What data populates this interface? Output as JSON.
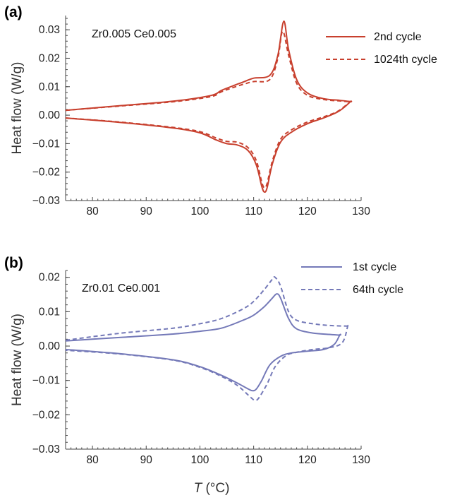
{
  "xlabel": "T (°C)",
  "chart_data": [
    {
      "type": "line",
      "panel_label": "(a)",
      "composition": "Zr0.005 Ce0.005",
      "ylabel": "Heat flow (W/g)",
      "xlim": [
        75,
        130
      ],
      "ylim": [
        -0.03,
        0.035
      ],
      "xticks": [
        80,
        90,
        100,
        110,
        120,
        130
      ],
      "yticks": [
        0.03,
        0.02,
        0.01,
        0.0,
        -0.01,
        -0.02,
        -0.03
      ],
      "ytick_labels": [
        "0.03",
        "0.02",
        "0.01",
        "0.00",
        "−0.01",
        "−0.02",
        "−0.03"
      ],
      "color": "#c8402e",
      "legend_position": "top-right",
      "series": [
        {
          "name": "2nd cycle",
          "style": "solid",
          "heating": {
            "x": [
              75,
              85,
              95,
              102,
              104,
              106,
              108,
              110,
              113,
              114.5,
              115.6,
              116.5,
              118,
              120,
              123,
              126,
              128
            ],
            "y": [
              0.0017,
              0.0033,
              0.0049,
              0.0069,
              0.0087,
              0.0102,
              0.0116,
              0.013,
              0.014,
              0.021,
              0.033,
              0.023,
              0.0125,
              0.0078,
              0.0058,
              0.0052,
              0.0048
            ]
          },
          "cooling": {
            "x": [
              128,
              127,
              125.5,
              123,
              120,
              117,
              115,
              113.5,
              112.5,
              112,
              111.5,
              110.5,
              109,
              107,
              105,
              103,
              100,
              95,
              85,
              75
            ],
            "y": [
              0.0048,
              0.003,
              0.001,
              -0.001,
              -0.003,
              -0.006,
              -0.0095,
              -0.017,
              -0.0255,
              -0.027,
              -0.025,
              -0.0175,
              -0.0125,
              -0.0105,
              -0.01,
              -0.0087,
              -0.0062,
              -0.0045,
              -0.0025,
              -0.001
            ]
          }
        },
        {
          "name": "1024th cycle",
          "style": "dashed",
          "heating": {
            "x": [
              75,
              85,
              95,
              102,
              104,
              106,
              108,
              110,
              113,
              114.5,
              115.4,
              116.5,
              118,
              120,
              123,
              126,
              128
            ],
            "y": [
              0.0017,
              0.0032,
              0.0047,
              0.0065,
              0.0082,
              0.0096,
              0.0108,
              0.0118,
              0.0125,
              0.02,
              0.0295,
              0.021,
              0.0112,
              0.007,
              0.0055,
              0.005,
              0.0047
            ]
          },
          "cooling": {
            "x": [
              128,
              127,
              125.5,
              123,
              120,
              117,
              115,
              113.5,
              112.5,
              112,
              111.5,
              110.5,
              109,
              107,
              105,
              103,
              100,
              95,
              85,
              75
            ],
            "y": [
              0.0047,
              0.0032,
              0.0012,
              -0.0006,
              -0.0024,
              -0.0052,
              -0.0085,
              -0.016,
              -0.024,
              -0.0255,
              -0.0235,
              -0.016,
              -0.0115,
              -0.0095,
              -0.0092,
              -0.008,
              -0.0058,
              -0.0043,
              -0.0024,
              -0.001
            ]
          }
        }
      ]
    },
    {
      "type": "line",
      "panel_label": "(b)",
      "composition": "Zr0.01 Ce0.001",
      "ylabel": "Heat flow (W/g)",
      "xlim": [
        75,
        130
      ],
      "ylim": [
        -0.03,
        0.022
      ],
      "xticks": [
        80,
        90,
        100,
        110,
        120,
        130
      ],
      "yticks": [
        0.02,
        0.01,
        0.0,
        -0.01,
        -0.02,
        -0.03
      ],
      "ytick_labels": [
        "0.02",
        "0.01",
        "0.00",
        "−0.01",
        "−0.02",
        "−0.03"
      ],
      "color": "#7479b8",
      "legend_position": "top-right",
      "series": [
        {
          "name": "1st cycle",
          "style": "solid",
          "heating": {
            "x": [
              75,
              85,
              95,
              100,
              104,
              108,
              110,
              112,
              113.5,
              114.3,
              115,
              116.5,
              118,
              121,
              124,
              126
            ],
            "y": [
              0.0015,
              0.0025,
              0.0035,
              0.0043,
              0.0052,
              0.0075,
              0.009,
              0.0115,
              0.014,
              0.0152,
              0.014,
              0.008,
              0.005,
              0.0038,
              0.0034,
              0.0032
            ]
          },
          "cooling": {
            "x": [
              126,
              125,
              123,
              120,
              117,
              115,
              113,
              111.5,
              110.5,
              109.8,
              109,
              107,
              104,
              100,
              95,
              85,
              75
            ],
            "y": [
              0.0032,
              0.0005,
              -0.001,
              -0.0015,
              -0.002,
              -0.003,
              -0.0055,
              -0.01,
              -0.0125,
              -0.013,
              -0.0125,
              -0.0108,
              -0.0085,
              -0.006,
              -0.004,
              -0.0022,
              -0.001
            ]
          }
        },
        {
          "name": "64th cycle",
          "style": "dashed",
          "heating": {
            "x": [
              75,
              85,
              95,
              100,
              104,
              108,
              110,
              112,
              113.5,
              114,
              115,
              116.5,
              118,
              121,
              124,
              127.5
            ],
            "y": [
              0.0017,
              0.0037,
              0.0052,
              0.0065,
              0.008,
              0.0108,
              0.013,
              0.0165,
              0.0195,
              0.02,
              0.0175,
              0.01,
              0.0075,
              0.0065,
              0.006,
              0.0058
            ]
          },
          "cooling": {
            "x": [
              127.5,
              126.5,
              124,
              121,
              118,
              116,
              114,
              112.5,
              111,
              110.3,
              109.5,
              107,
              104,
              100,
              95,
              85,
              75
            ],
            "y": [
              0.0058,
              0.001,
              -0.0005,
              -0.001,
              -0.0018,
              -0.0028,
              -0.006,
              -0.011,
              -0.015,
              -0.0158,
              -0.015,
              -0.0115,
              -0.0088,
              -0.0062,
              -0.0041,
              -0.0023,
              -0.0012
            ]
          }
        }
      ]
    }
  ]
}
